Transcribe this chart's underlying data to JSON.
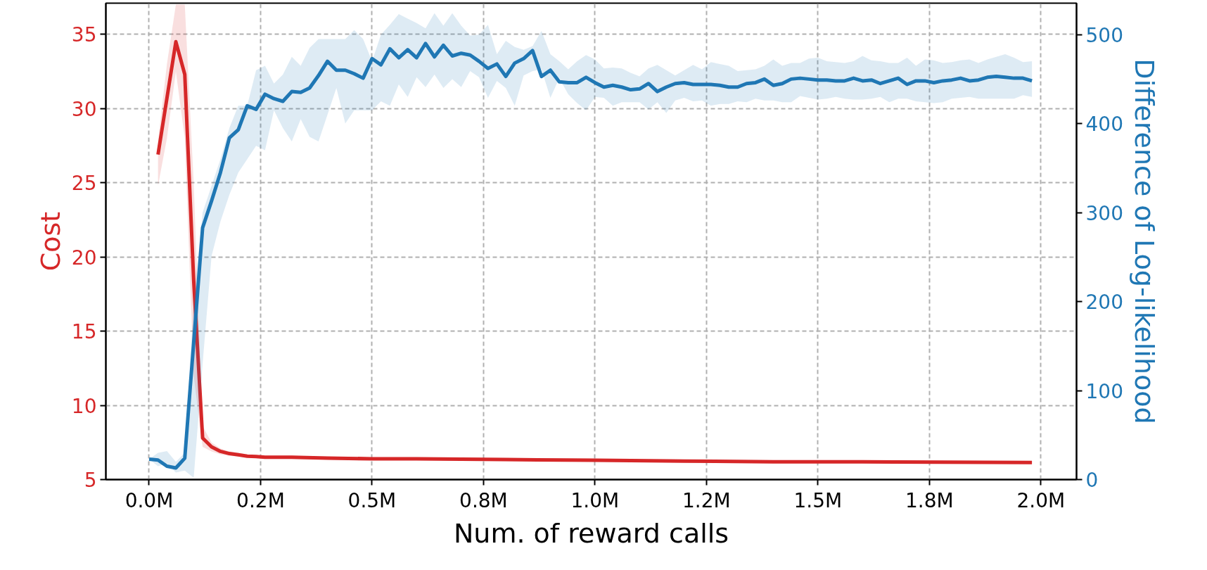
{
  "chart_data": {
    "type": "line",
    "xlabel": "Num. of reward calls",
    "ylabel": "Cost",
    "y2label": "Difference of Log-likelihood",
    "xlim": [
      -0.097,
      2.08
    ],
    "xticks": [
      {
        "value": 0,
        "label": "0.0M"
      },
      {
        "value": 0.25,
        "label": "0.2M"
      },
      {
        "value": 0.5,
        "label": "0.5M"
      },
      {
        "value": 0.75,
        "label": "0.8M"
      },
      {
        "value": 1.0,
        "label": "1.0M"
      },
      {
        "value": 1.25,
        "label": "1.2M"
      },
      {
        "value": 1.5,
        "label": "1.5M"
      },
      {
        "value": 1.75,
        "label": "1.8M"
      },
      {
        "value": 2.0,
        "label": "2.0M"
      }
    ],
    "ylim": [
      5,
      37.1
    ],
    "yticks": [
      5,
      10,
      15,
      20,
      25,
      30,
      35
    ],
    "y2lim": [
      0,
      535.3
    ],
    "y2ticks": [
      0,
      100,
      200,
      300,
      400,
      500
    ],
    "grid": true,
    "line_style": "solid",
    "series": [
      {
        "color": "#d62728",
        "x": [
          0.02,
          0.04,
          0.06,
          0.08,
          0.1,
          0.12,
          0.14,
          0.16,
          0.18,
          0.2,
          0.22,
          0.24,
          0.26,
          0.32,
          0.4,
          0.5,
          0.6,
          0.8,
          1.0,
          1.2,
          1.4,
          1.6,
          1.98
        ],
        "values": [
          26.9,
          30.7,
          34.5,
          32.3,
          18.4,
          7.8,
          7.2,
          6.9,
          6.75,
          6.67,
          6.58,
          6.55,
          6.5,
          6.5,
          6.45,
          6.4,
          6.4,
          6.35,
          6.3,
          6.25,
          6.2,
          6.2,
          6.15
        ],
        "lower": [
          24.8,
          28,
          32.5,
          28,
          12,
          7.2,
          6.9,
          6.7,
          6.6,
          6.55,
          6.5,
          6.45,
          6.4,
          6.4,
          6.35,
          6.3,
          6.3,
          6.25,
          6.2,
          6.15,
          6.1,
          6.1,
          6.05
        ],
        "upper": [
          27.8,
          33,
          37,
          37,
          25,
          8.6,
          7.5,
          7.1,
          6.9,
          6.8,
          6.7,
          6.65,
          6.6,
          6.6,
          6.55,
          6.5,
          6.5,
          6.45,
          6.4,
          6.35,
          6.3,
          6.3,
          6.25
        ]
      },
      {
        "color": "#1f77b4",
        "axis": "y2",
        "x": [
          0,
          0.02,
          0.04,
          0.06,
          0.08,
          0.1,
          0.12,
          0.14,
          0.16,
          0.18,
          0.2,
          0.22,
          0.24,
          0.26,
          0.28,
          0.3,
          0.32,
          0.34,
          0.36,
          0.38,
          0.4,
          0.42,
          0.44,
          0.46,
          0.48,
          0.5,
          0.52,
          0.54,
          0.56,
          0.58,
          0.6,
          0.62,
          0.64,
          0.66,
          0.68,
          0.7,
          0.72,
          0.74,
          0.76,
          0.78,
          0.8,
          0.82,
          0.84,
          0.86,
          0.88,
          0.9,
          0.92,
          0.94,
          0.96,
          0.98,
          1.0,
          1.02,
          1.04,
          1.06,
          1.08,
          1.1,
          1.12,
          1.14,
          1.16,
          1.18,
          1.2,
          1.22,
          1.24,
          1.26,
          1.28,
          1.3,
          1.32,
          1.34,
          1.36,
          1.38,
          1.4,
          1.42,
          1.44,
          1.46,
          1.48,
          1.5,
          1.52,
          1.54,
          1.56,
          1.58,
          1.6,
          1.62,
          1.64,
          1.66,
          1.68,
          1.7,
          1.72,
          1.74,
          1.76,
          1.78,
          1.8,
          1.82,
          1.84,
          1.86,
          1.88,
          1.9,
          1.92,
          1.94,
          1.96,
          1.98
        ],
        "values": [
          23,
          22,
          15,
          13,
          24,
          154,
          283,
          313,
          345,
          384,
          393,
          420,
          416,
          433,
          428,
          425,
          436,
          435,
          440,
          454,
          470,
          460,
          460,
          456,
          451,
          473,
          466,
          484,
          474,
          483,
          474,
          490,
          475,
          488,
          476,
          479,
          477,
          470,
          462,
          467,
          453,
          468,
          473,
          482,
          453,
          460,
          447,
          446,
          446,
          452,
          446,
          441,
          443,
          441,
          438,
          439,
          445,
          436,
          441,
          445,
          446,
          444,
          444,
          444,
          443,
          441,
          441,
          445,
          446,
          450,
          443,
          445,
          450,
          451,
          450,
          449,
          449,
          448,
          448,
          451,
          448,
          449,
          445,
          448,
          451,
          444,
          448,
          448,
          446,
          448,
          449,
          451,
          448,
          449,
          452,
          453,
          452,
          451,
          451,
          448
        ],
        "lower": [
          23,
          15,
          18,
          8,
          10,
          2,
          130,
          251,
          290,
          320,
          345,
          360,
          375,
          370,
          415,
          395,
          380,
          405,
          385,
          380,
          410,
          440,
          400,
          415,
          415,
          415,
          425,
          420,
          444,
          430,
          452,
          441,
          455,
          440,
          450,
          441,
          459,
          452,
          429,
          448,
          440,
          420,
          454,
          459,
          461,
          429,
          451,
          433,
          423,
          415,
          430,
          429,
          420,
          424,
          424,
          424,
          416,
          424,
          412,
          426,
          429,
          425,
          426,
          420,
          422,
          422,
          425,
          424,
          428,
          426,
          426,
          424,
          424,
          431,
          429,
          427,
          428,
          430,
          428,
          427,
          427,
          428,
          430,
          424,
          428,
          428,
          425,
          424,
          423,
          424,
          428,
          429,
          430,
          428,
          428,
          428,
          428,
          428,
          432,
          430
        ],
        "upper": [
          23,
          30,
          32,
          20,
          30,
          200,
          300,
          330,
          360,
          395,
          420,
          420,
          460,
          465,
          445,
          455,
          475,
          465,
          485,
          495,
          495,
          495,
          495,
          505,
          495,
          470,
          500,
          511,
          523,
          518,
          513,
          507,
          524,
          510,
          524,
          510,
          499,
          500,
          511,
          478,
          493,
          486,
          483,
          487,
          504,
          478,
          470,
          461,
          470,
          477,
          472,
          462,
          463,
          462,
          457,
          453,
          462,
          466,
          460,
          454,
          460,
          466,
          461,
          469,
          467,
          465,
          459,
          460,
          461,
          465,
          472,
          465,
          468,
          468,
          473,
          474,
          470,
          469,
          468,
          470,
          476,
          471,
          470,
          468,
          468,
          474,
          465,
          472,
          471,
          468,
          469,
          471,
          472,
          468,
          472,
          475,
          478,
          474,
          469,
          470
        ]
      }
    ]
  }
}
